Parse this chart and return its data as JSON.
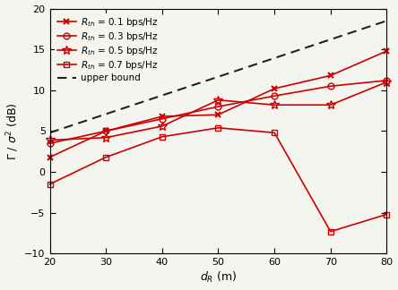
{
  "x": [
    20,
    30,
    40,
    50,
    60,
    70,
    80
  ],
  "series": [
    {
      "label": "$R_{th}$ = 0.1 bps/Hz",
      "marker": "x",
      "markerfacecolor": "red",
      "y": [
        1.8,
        5.0,
        6.8,
        7.0,
        10.2,
        11.8,
        14.8
      ]
    },
    {
      "label": "$R_{th}$ = 0.3 bps/Hz",
      "marker": "o",
      "markerfacecolor": "none",
      "y": [
        3.5,
        5.0,
        6.5,
        8.0,
        9.3,
        10.5,
        11.2
      ]
    },
    {
      "label": "$R_{th}$ = 0.5 bps/Hz",
      "marker": "*",
      "markerfacecolor": "none",
      "y": [
        3.9,
        4.2,
        5.6,
        8.8,
        8.2,
        8.2,
        11.0
      ]
    },
    {
      "label": "$R_{th}$ = 0.7 bps/Hz",
      "marker": "s",
      "markerfacecolor": "none",
      "y": [
        -1.5,
        1.8,
        4.3,
        5.4,
        4.8,
        -7.3,
        -5.2
      ]
    }
  ],
  "upper_bound": {
    "label": "upper bound",
    "x": [
      20,
      80
    ],
    "y": [
      4.8,
      18.5
    ]
  },
  "xlabel": "$d_R$ (m)",
  "ylabel": "$\\Gamma$ / $\\sigma^2$ (dB)",
  "xlim": [
    20,
    80
  ],
  "ylim": [
    -10,
    20
  ],
  "xticks": [
    20,
    30,
    40,
    50,
    60,
    70,
    80
  ],
  "yticks": [
    -10,
    -5,
    0,
    5,
    10,
    15,
    20
  ],
  "line_color": "#cc0000",
  "upper_bound_color": "#222222",
  "background_color": "#f5f5f0",
  "legend_fontsize": 7.5,
  "axis_fontsize": 9,
  "tick_labelsize": 8
}
